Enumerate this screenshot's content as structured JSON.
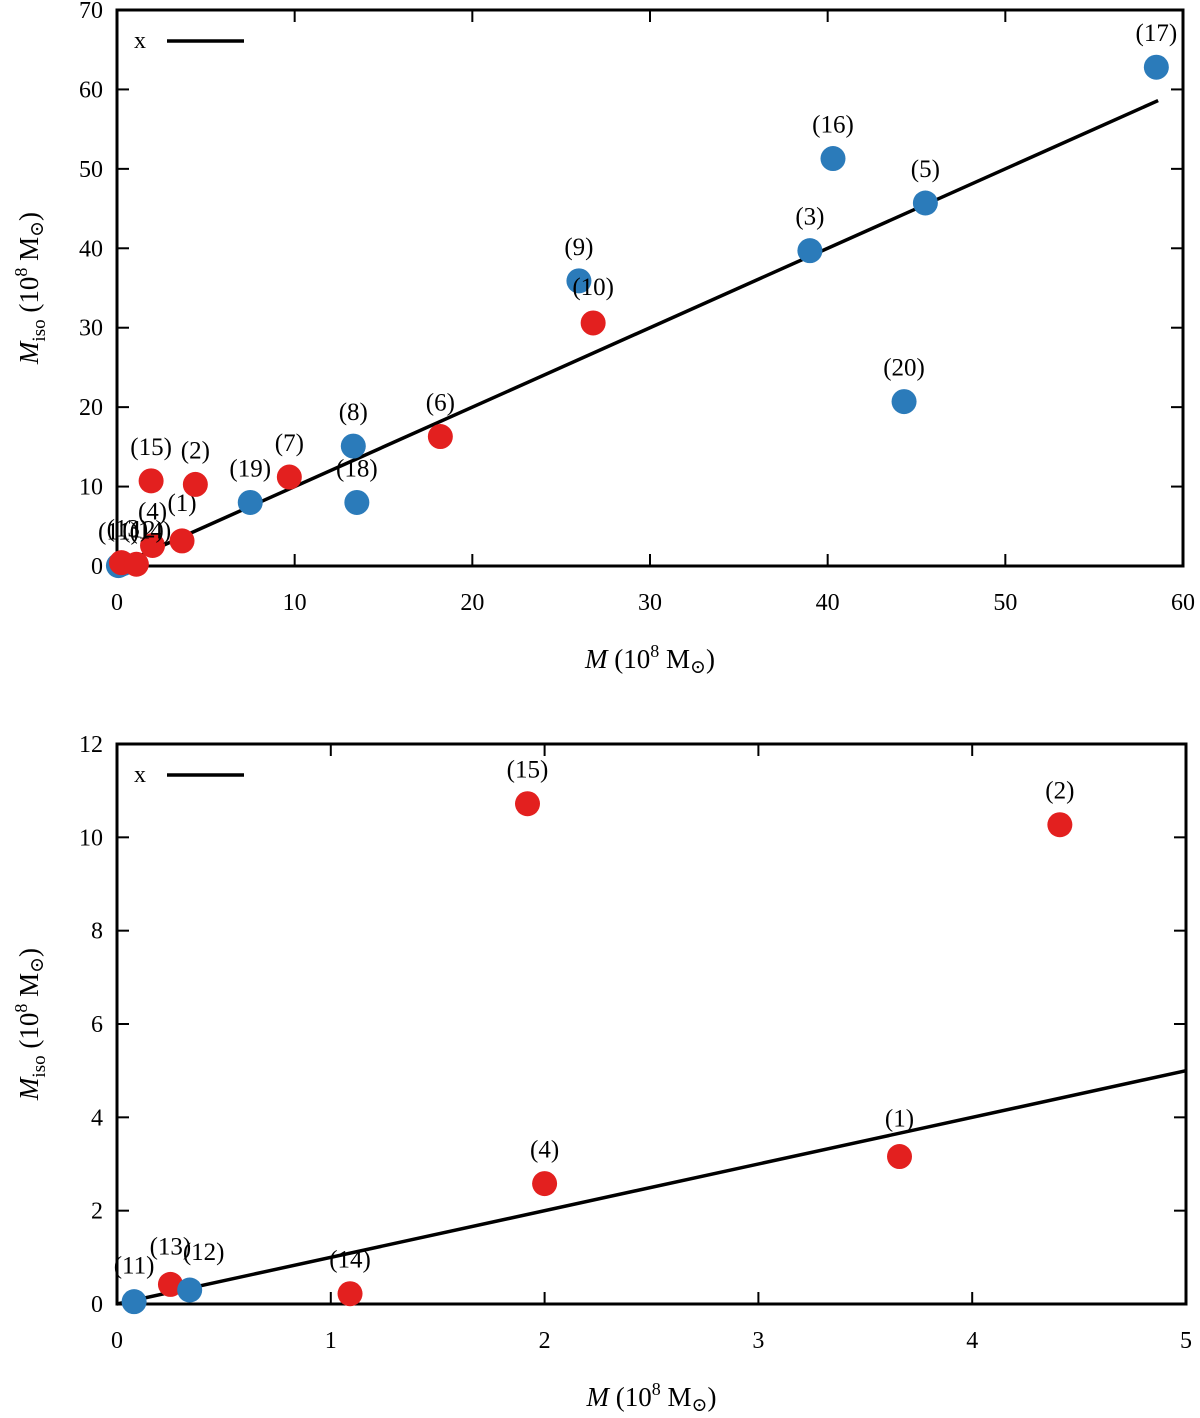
{
  "chart_data": [
    {
      "type": "scatter",
      "xlabel": "M (10^8 M⊙)",
      "ylabel": "Miso (10^8 M⊙)",
      "xlim": [
        0,
        60
      ],
      "ylim": [
        0,
        70
      ],
      "xticks": [
        0,
        10,
        20,
        30,
        40,
        50,
        60
      ],
      "yticks": [
        0,
        10,
        20,
        30,
        40,
        50,
        60,
        70
      ],
      "legend": {
        "label": "x",
        "placement": "top-left"
      },
      "line": {
        "name": "x",
        "x": [
          0,
          58.6
        ],
        "y": [
          0,
          58.6
        ]
      },
      "colors": {
        "red": "#e3201f",
        "blue": "#2b7bba",
        "line": "#000000"
      },
      "points": [
        {
          "label": "(1)",
          "x": 3.66,
          "y": 3.16,
          "color": "red"
        },
        {
          "label": "(2)",
          "x": 4.41,
          "y": 10.27,
          "color": "red"
        },
        {
          "label": "(3)",
          "x": 39.0,
          "y": 39.7,
          "color": "blue"
        },
        {
          "label": "(4)",
          "x": 2.0,
          "y": 2.58,
          "color": "red"
        },
        {
          "label": "(5)",
          "x": 45.5,
          "y": 45.7,
          "color": "blue"
        },
        {
          "label": "(6)",
          "x": 18.2,
          "y": 16.3,
          "color": "red"
        },
        {
          "label": "(7)",
          "x": 9.7,
          "y": 11.2,
          "color": "red"
        },
        {
          "label": "(8)",
          "x": 13.3,
          "y": 15.1,
          "color": "blue"
        },
        {
          "label": "(9)",
          "x": 26.0,
          "y": 35.9,
          "color": "blue"
        },
        {
          "label": "(10)",
          "x": 26.8,
          "y": 30.6,
          "color": "red"
        },
        {
          "label": "(11)",
          "x": 0.08,
          "y": 0.05,
          "color": "blue"
        },
        {
          "label": "(12)",
          "x": 0.34,
          "y": 0.3,
          "color": "blue"
        },
        {
          "label": "(13)",
          "x": 0.25,
          "y": 0.42,
          "color": "red"
        },
        {
          "label": "(14)",
          "x": 1.09,
          "y": 0.22,
          "color": "red"
        },
        {
          "label": "(15)",
          "x": 1.92,
          "y": 10.72,
          "color": "red"
        },
        {
          "label": "(16)",
          "x": 40.3,
          "y": 51.3,
          "color": "blue"
        },
        {
          "label": "(17)",
          "x": 58.5,
          "y": 62.8,
          "color": "blue"
        },
        {
          "label": "(18)",
          "x": 13.5,
          "y": 8.0,
          "color": "blue"
        },
        {
          "label": "(19)",
          "x": 7.5,
          "y": 8.0,
          "color": "blue"
        },
        {
          "label": "(20)",
          "x": 44.3,
          "y": 20.7,
          "color": "blue"
        }
      ]
    },
    {
      "type": "scatter",
      "xlabel": "M (10^8 M⊙)",
      "ylabel": "Miso (10^8 M⊙)",
      "xlim": [
        0,
        5
      ],
      "ylim": [
        0,
        12
      ],
      "xticks": [
        0,
        1,
        2,
        3,
        4,
        5
      ],
      "yticks": [
        0,
        2,
        4,
        6,
        8,
        10,
        12
      ],
      "legend": {
        "label": "x",
        "placement": "top-left"
      },
      "line": {
        "name": "x",
        "x": [
          0,
          5
        ],
        "y": [
          0,
          5
        ]
      },
      "colors": {
        "red": "#e3201f",
        "blue": "#2b7bba",
        "line": "#000000"
      },
      "points": [
        {
          "label": "(15)",
          "x": 1.92,
          "y": 10.72,
          "color": "red"
        },
        {
          "label": "(2)",
          "x": 4.41,
          "y": 10.27,
          "color": "red"
        },
        {
          "label": "(1)",
          "x": 3.66,
          "y": 3.16,
          "color": "red"
        },
        {
          "label": "(4)",
          "x": 2.0,
          "y": 2.58,
          "color": "red"
        },
        {
          "label": "(14)",
          "x": 1.09,
          "y": 0.22,
          "color": "red"
        },
        {
          "label": "(13)",
          "x": 0.25,
          "y": 0.42,
          "color": "red"
        },
        {
          "label": "(12)",
          "x": 0.34,
          "y": 0.3,
          "color": "blue"
        },
        {
          "label": "(11)",
          "x": 0.08,
          "y": 0.05,
          "color": "blue"
        }
      ]
    }
  ]
}
